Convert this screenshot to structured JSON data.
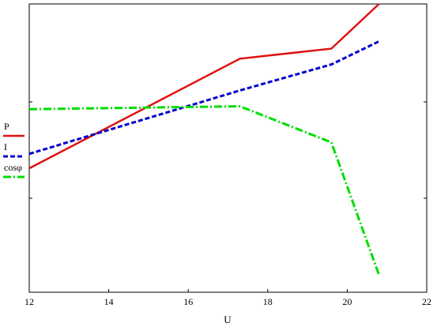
{
  "chart_data": {
    "type": "line",
    "xlabel": "U",
    "ylabel": "",
    "xlim": [
      12,
      22
    ],
    "xticks": [
      "12",
      "14",
      "16",
      "18",
      "20",
      "22"
    ],
    "grid": false,
    "legend_placement": "left",
    "series": [
      {
        "name": "P",
        "color": "#e01010",
        "style": "solid",
        "x": [
          12.0,
          17.3,
          19.6,
          20.8
        ],
        "y": [
          0.43,
          0.81,
          0.845,
          1.0
        ]
      },
      {
        "name": "I",
        "color": "#0000cc",
        "style": "dashed",
        "x": [
          12.0,
          17.3,
          19.6,
          20.8
        ],
        "y": [
          0.48,
          0.7,
          0.79,
          0.87
        ]
      },
      {
        "name": "cosφ",
        "color": "#00dd00",
        "style": "dashdot",
        "x": [
          12.0,
          17.3,
          19.6,
          20.8
        ],
        "y": [
          0.635,
          0.645,
          0.52,
          0.06
        ]
      }
    ]
  }
}
